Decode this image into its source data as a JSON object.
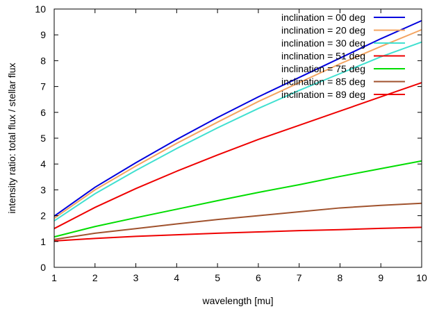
{
  "chart_data": {
    "type": "line",
    "xlabel": "wavelength [mu]",
    "ylabel": "intensity ratio: total flux / stellar flux",
    "xlim": [
      1,
      10
    ],
    "ylim": [
      0,
      10
    ],
    "x_ticks": [
      1,
      2,
      3,
      4,
      5,
      6,
      7,
      8,
      9,
      10
    ],
    "y_ticks": [
      0,
      1,
      2,
      3,
      4,
      5,
      6,
      7,
      8,
      9,
      10
    ],
    "grid": false,
    "legend_position": "top-right",
    "x": [
      1,
      2,
      3,
      4,
      5,
      6,
      7,
      8,
      9,
      10
    ],
    "series": [
      {
        "name": "inclination = 00 deg",
        "color": "#0000dd",
        "values": [
          1.98,
          3.1,
          4.05,
          4.95,
          5.8,
          6.6,
          7.35,
          8.1,
          8.85,
          9.55
        ]
      },
      {
        "name": "inclination = 20 deg",
        "color": "#f4a460",
        "values": [
          1.9,
          3.0,
          3.92,
          4.8,
          5.62,
          6.42,
          7.15,
          7.88,
          8.55,
          9.2
        ]
      },
      {
        "name": "inclination = 30 deg",
        "color": "#40e0d0",
        "values": [
          1.8,
          2.85,
          3.75,
          4.6,
          5.4,
          6.15,
          6.85,
          7.5,
          8.15,
          8.72
        ]
      },
      {
        "name": "inclination = 51 deg",
        "color": "#ee0000",
        "values": [
          1.5,
          2.32,
          3.05,
          3.72,
          4.35,
          4.95,
          5.5,
          6.05,
          6.6,
          7.15
        ]
      },
      {
        "name": "inclination = 75 deg",
        "color": "#00dd00",
        "values": [
          1.18,
          1.58,
          1.92,
          2.25,
          2.58,
          2.9,
          3.2,
          3.52,
          3.82,
          4.12
        ]
      },
      {
        "name": "inclination = 85 deg",
        "color": "#a0522d",
        "values": [
          1.08,
          1.32,
          1.5,
          1.68,
          1.85,
          2.0,
          2.15,
          2.3,
          2.4,
          2.48
        ]
      },
      {
        "name": "inclination = 89 deg",
        "color": "#ee0000",
        "values": [
          1.02,
          1.12,
          1.2,
          1.26,
          1.32,
          1.37,
          1.42,
          1.46,
          1.51,
          1.55
        ]
      }
    ]
  }
}
